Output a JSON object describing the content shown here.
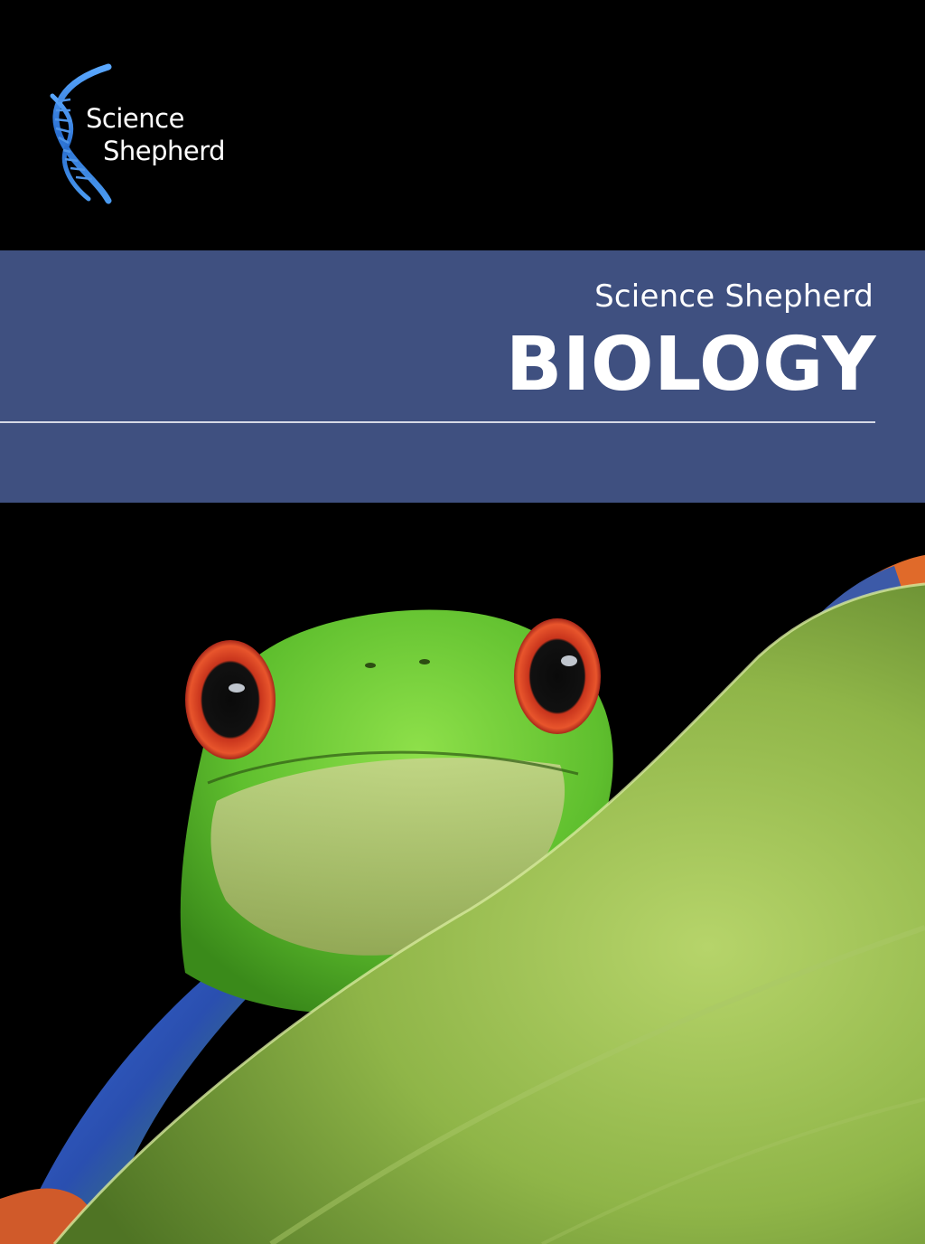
{
  "logo": {
    "line1": "Science",
    "line2": "Shepherd",
    "icon": "dna-helix-icon",
    "accent_color": "#2f7fd8"
  },
  "band": {
    "subtitle": "Science Shepherd",
    "title": "BIOLOGY",
    "color": "#3f5080"
  },
  "photo": {
    "subject": "red-eyed-tree-frog-on-leaf"
  }
}
